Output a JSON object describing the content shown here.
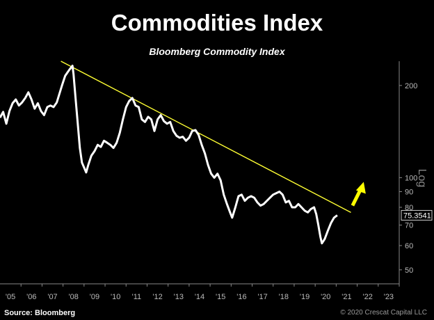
{
  "page": {
    "title": "Commodities Index",
    "subtitle": "Bloomberg Commodity Index",
    "source": "Source: Bloomberg",
    "copyright": "© 2020 Crescat Capital LLC"
  },
  "colors": {
    "background": "#000000",
    "series": "#ffffff",
    "trendline": "#ffff33",
    "arrow": "#ffff00",
    "axis_text": "#bbbbbb"
  },
  "chart_data": {
    "type": "line",
    "title": "Commodities Index",
    "subtitle": "Bloomberg Commodity Index",
    "y_scale": "log",
    "y_axis_label": "Log",
    "y_axis_position": "right",
    "ylim": [
      45,
      240
    ],
    "y_ticks": [
      50,
      60,
      70,
      80,
      90,
      100,
      200
    ],
    "xlim": [
      2005.0,
      2024.0
    ],
    "x_tick_labels": [
      "'05",
      "'06",
      "'07",
      "'08",
      "'09",
      "'10",
      "'11",
      "'12",
      "'13",
      "'14",
      "'15",
      "'16",
      "'17",
      "'18",
      "'19",
      "'20",
      "'21",
      "'22",
      "'23"
    ],
    "last_value_label": "75.3541",
    "grid": false,
    "legend": "none",
    "series": [
      {
        "values": [
          [
            2005.0,
            157
          ],
          [
            2005.15,
            164
          ],
          [
            2005.3,
            150
          ],
          [
            2005.45,
            165
          ],
          [
            2005.6,
            175
          ],
          [
            2005.75,
            180
          ],
          [
            2005.9,
            172
          ],
          [
            2006.05,
            176
          ],
          [
            2006.2,
            182
          ],
          [
            2006.35,
            190
          ],
          [
            2006.5,
            180
          ],
          [
            2006.65,
            168
          ],
          [
            2006.8,
            175
          ],
          [
            2006.95,
            165
          ],
          [
            2007.1,
            160
          ],
          [
            2007.25,
            170
          ],
          [
            2007.4,
            172
          ],
          [
            2007.55,
            170
          ],
          [
            2007.7,
            176
          ],
          [
            2007.85,
            190
          ],
          [
            2007.95,
            200
          ],
          [
            2008.1,
            215
          ],
          [
            2008.2,
            220
          ],
          [
            2008.3,
            225
          ],
          [
            2008.45,
            232
          ],
          [
            2008.5,
            218
          ],
          [
            2008.6,
            180
          ],
          [
            2008.7,
            150
          ],
          [
            2008.8,
            125
          ],
          [
            2008.9,
            112
          ],
          [
            2009.0,
            108
          ],
          [
            2009.1,
            104
          ],
          [
            2009.2,
            110
          ],
          [
            2009.35,
            118
          ],
          [
            2009.5,
            122
          ],
          [
            2009.65,
            128
          ],
          [
            2009.8,
            126
          ],
          [
            2009.95,
            132
          ],
          [
            2010.1,
            130
          ],
          [
            2010.25,
            128
          ],
          [
            2010.4,
            125
          ],
          [
            2010.55,
            130
          ],
          [
            2010.7,
            140
          ],
          [
            2010.85,
            155
          ],
          [
            2011.0,
            170
          ],
          [
            2011.15,
            178
          ],
          [
            2011.3,
            182
          ],
          [
            2011.45,
            172
          ],
          [
            2011.6,
            170
          ],
          [
            2011.75,
            155
          ],
          [
            2011.9,
            152
          ],
          [
            2012.05,
            158
          ],
          [
            2012.2,
            155
          ],
          [
            2012.35,
            142
          ],
          [
            2012.5,
            155
          ],
          [
            2012.65,
            160
          ],
          [
            2012.8,
            153
          ],
          [
            2012.95,
            150
          ],
          [
            2013.1,
            152
          ],
          [
            2013.25,
            142
          ],
          [
            2013.4,
            137
          ],
          [
            2013.55,
            135
          ],
          [
            2013.7,
            136
          ],
          [
            2013.85,
            132
          ],
          [
            2014.0,
            135
          ],
          [
            2014.15,
            142
          ],
          [
            2014.3,
            143
          ],
          [
            2014.45,
            138
          ],
          [
            2014.6,
            128
          ],
          [
            2014.75,
            120
          ],
          [
            2014.9,
            110
          ],
          [
            2015.05,
            103
          ],
          [
            2015.2,
            100
          ],
          [
            2015.35,
            103
          ],
          [
            2015.5,
            98
          ],
          [
            2015.65,
            88
          ],
          [
            2015.8,
            82
          ],
          [
            2015.95,
            77
          ],
          [
            2016.05,
            74
          ],
          [
            2016.2,
            80
          ],
          [
            2016.35,
            87
          ],
          [
            2016.5,
            88
          ],
          [
            2016.65,
            84
          ],
          [
            2016.8,
            86
          ],
          [
            2016.95,
            87
          ],
          [
            2017.1,
            86
          ],
          [
            2017.25,
            83
          ],
          [
            2017.4,
            81
          ],
          [
            2017.55,
            82
          ],
          [
            2017.7,
            84
          ],
          [
            2017.85,
            86
          ],
          [
            2018.0,
            88
          ],
          [
            2018.15,
            89
          ],
          [
            2018.3,
            90
          ],
          [
            2018.45,
            88
          ],
          [
            2018.6,
            83
          ],
          [
            2018.75,
            84
          ],
          [
            2018.9,
            80
          ],
          [
            2019.05,
            80
          ],
          [
            2019.2,
            82
          ],
          [
            2019.35,
            80
          ],
          [
            2019.5,
            78
          ],
          [
            2019.65,
            77
          ],
          [
            2019.8,
            79
          ],
          [
            2019.95,
            80
          ],
          [
            2020.05,
            76
          ],
          [
            2020.15,
            70
          ],
          [
            2020.25,
            64
          ],
          [
            2020.32,
            61
          ],
          [
            2020.45,
            63
          ],
          [
            2020.6,
            67
          ],
          [
            2020.75,
            71
          ],
          [
            2020.9,
            74
          ],
          [
            2021.05,
            75.3541
          ]
        ]
      }
    ],
    "trendline": [
      [
        2007.9,
        240
      ],
      [
        2021.7,
        77
      ]
    ],
    "annotation": {
      "type": "arrow",
      "direction": "up"
    }
  }
}
